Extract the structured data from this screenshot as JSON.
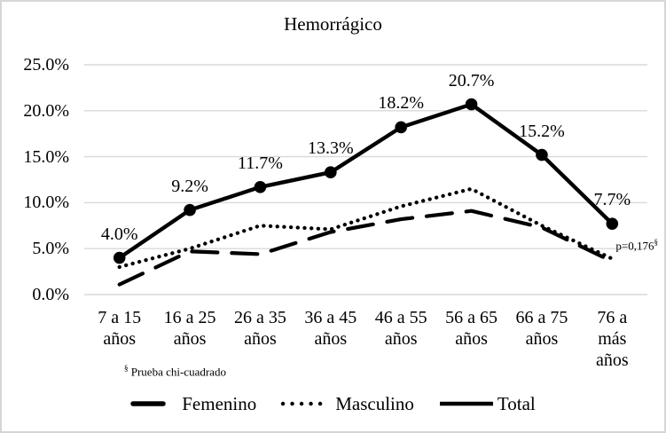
{
  "chart_data": {
    "type": "line",
    "title": "Hemorrágico",
    "categories": [
      "7 a 15 años",
      "16 a 25 años",
      "26 a 35 años",
      "36 a 45 años",
      "46 a 55 años",
      "56 a 65 años",
      "66 a 75 años",
      "76 a más años"
    ],
    "category_lines": [
      [
        "7 a 15",
        "años"
      ],
      [
        "16 a 25",
        "años"
      ],
      [
        "26 a 35",
        "años"
      ],
      [
        "36 a 45",
        "años"
      ],
      [
        "46 a 55",
        "años"
      ],
      [
        "56 a 65",
        "años"
      ],
      [
        "66 a 75",
        "años"
      ],
      [
        "76 a",
        "más",
        "años"
      ]
    ],
    "y_ticks": [
      "0.0%",
      "5.0%",
      "10.0%",
      "15.0%",
      "20.0%",
      "25.0%"
    ],
    "ylim": [
      0,
      25
    ],
    "xlabel": "",
    "ylabel": "",
    "grid": true,
    "legend_position": "bottom",
    "series": [
      {
        "name": "Femenino",
        "style": "dashed",
        "values": [
          1.1,
          4.7,
          4.4,
          6.8,
          8.2,
          9.1,
          7.3,
          3.6
        ]
      },
      {
        "name": "Masculino",
        "style": "dotted",
        "values": [
          3.0,
          5.0,
          7.5,
          7.1,
          9.6,
          11.5,
          7.5,
          3.9
        ]
      },
      {
        "name": "Total",
        "style": "solid-marker",
        "values": [
          4.0,
          9.2,
          11.7,
          13.3,
          18.2,
          20.7,
          15.2,
          7.7
        ],
        "labels": [
          "4.0%",
          "9.2%",
          "11.7%",
          "13.3%",
          "18.2%",
          "20.7%",
          "15.2%",
          "7.7%"
        ]
      }
    ],
    "annotation": {
      "text": "p=0,176",
      "sup": "§"
    },
    "footnote": {
      "sup": "§",
      "text": " Prueba chi-cuadrado"
    }
  },
  "colors": {
    "line": "#000000",
    "grid": "#d9d9d9",
    "text": "#000000",
    "frame_border": "#d6d6d6"
  }
}
